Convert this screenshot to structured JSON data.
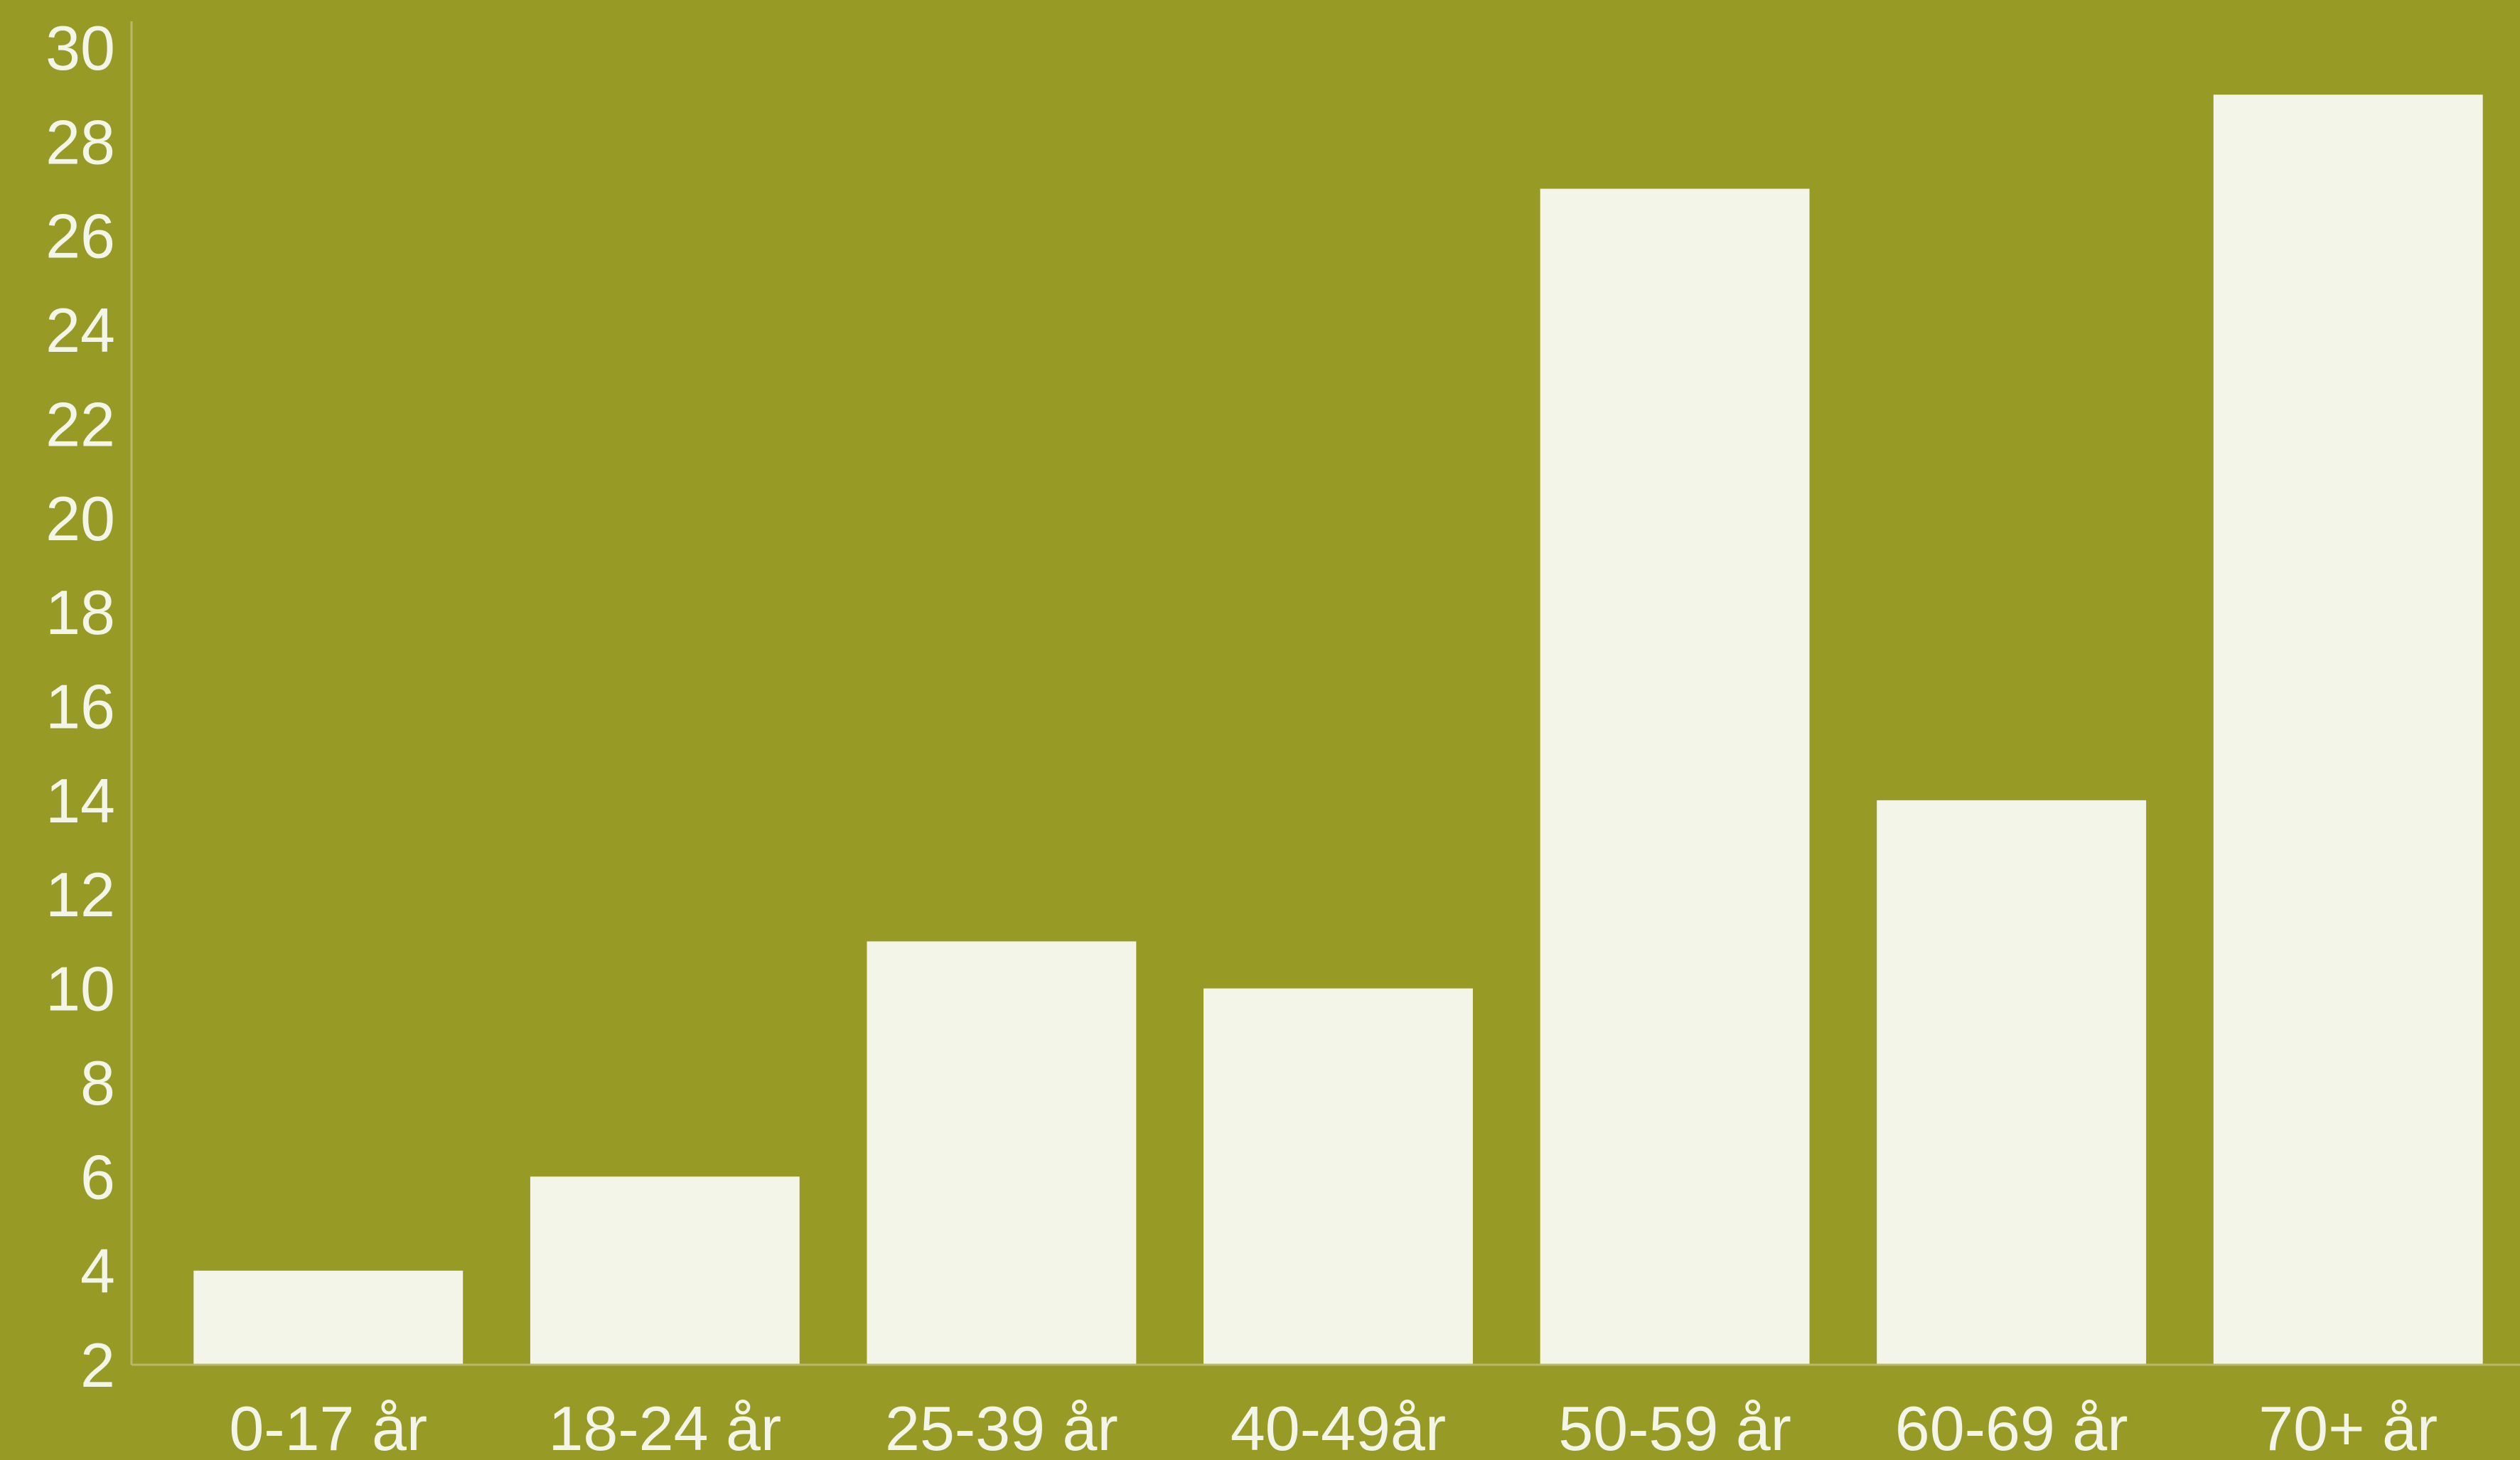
{
  "colors": {
    "background": "#979a25",
    "bar": "#f3f5e9",
    "text": "#f3f5e9",
    "axis": "#b8ba6a"
  },
  "chart_data": {
    "type": "bar",
    "title": "",
    "xlabel": "",
    "ylabel": "",
    "categories": [
      "0-17 år",
      "18-24 år",
      "25-39 år",
      "40-49år",
      "50-59 år",
      "60-69 år",
      "70+ år"
    ],
    "values": [
      4,
      6,
      11,
      10,
      27,
      14,
      29
    ],
    "ylim": [
      2,
      30
    ],
    "yticks": [
      "2",
      "4",
      "6",
      "8",
      "10",
      "12",
      "14",
      "16",
      "18",
      "20",
      "22",
      "24",
      "26",
      "28",
      "30"
    ],
    "grid": false,
    "legend": "none"
  }
}
